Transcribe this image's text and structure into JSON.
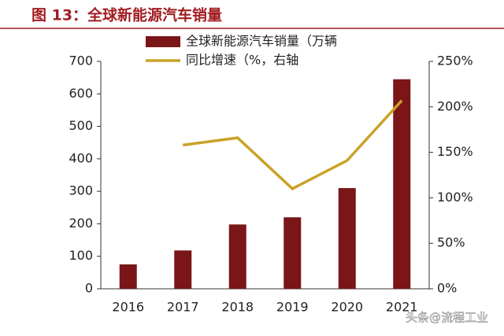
{
  "chart_data": {
    "type": "bar",
    "title": "图 13：全球新能源汽车销量",
    "categories": [
      "2016",
      "2017",
      "2018",
      "2019",
      "2020",
      "2021"
    ],
    "series": [
      {
        "name": "全球新能源汽车销量（万辆",
        "type": "bar",
        "color": "#7a1518",
        "values": [
          75,
          118,
          198,
          220,
          310,
          645
        ]
      },
      {
        "name": "同比增速（%，右轴",
        "type": "line",
        "axis": "y2",
        "color": "#c9a227",
        "values": [
          null,
          158,
          166,
          110,
          141,
          207
        ]
      }
    ],
    "ylim": [
      0,
      700
    ],
    "yticks": [
      0,
      100,
      200,
      300,
      400,
      500,
      600,
      700
    ],
    "y2lim": [
      0,
      250
    ],
    "y2ticks": [
      {
        "value": 0,
        "label": "0%"
      },
      {
        "value": 50,
        "label": "50%"
      },
      {
        "value": 100,
        "label": "100%"
      },
      {
        "value": 150,
        "label": "150%"
      },
      {
        "value": 200,
        "label": "200%"
      },
      {
        "value": 250,
        "label": "250%"
      }
    ],
    "watermark": "头条@流程工业"
  }
}
